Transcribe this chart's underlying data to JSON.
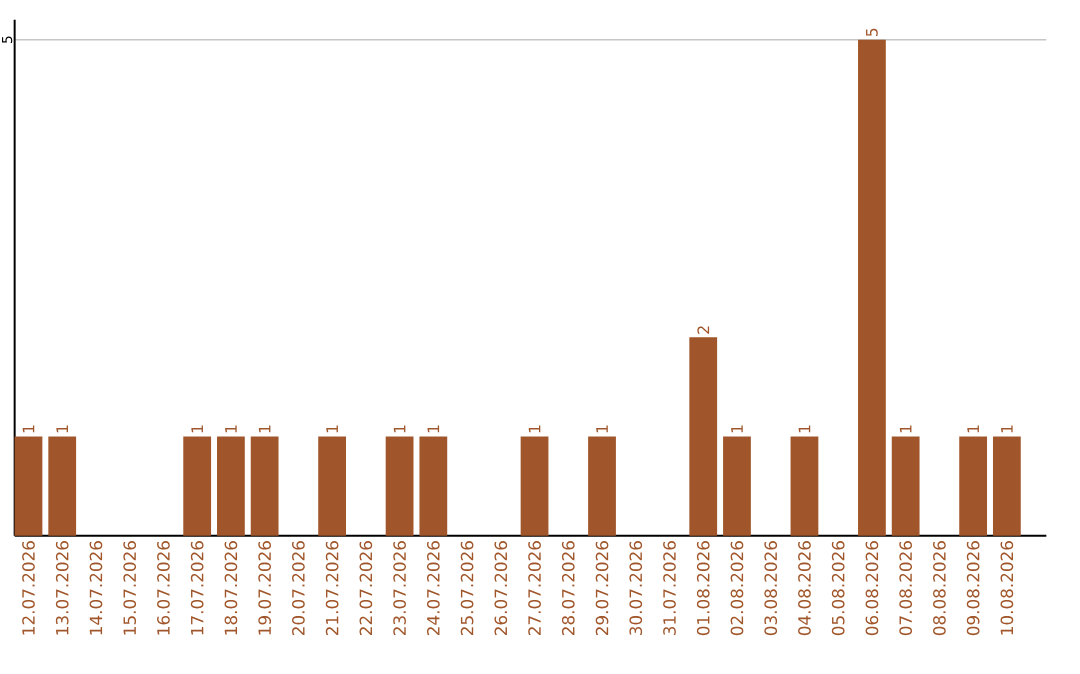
{
  "chart_data": {
    "type": "bar",
    "categories": [
      "12.07.2026",
      "13.07.2026",
      "14.07.2026",
      "15.07.2026",
      "16.07.2026",
      "17.07.2026",
      "18.07.2026",
      "19.07.2026",
      "20.07.2026",
      "21.07.2026",
      "22.07.2026",
      "23.07.2026",
      "24.07.2026",
      "25.07.2026",
      "26.07.2026",
      "27.07.2026",
      "28.07.2026",
      "29.07.2026",
      "30.07.2026",
      "31.07.2026",
      "01.08.2026",
      "02.08.2026",
      "03.08.2026",
      "04.08.2026",
      "05.08.2026",
      "06.08.2026",
      "07.08.2026",
      "08.08.2026",
      "09.08.2026",
      "10.08.2026"
    ],
    "values": [
      1,
      1,
      0,
      0,
      0,
      1,
      1,
      1,
      0,
      1,
      0,
      1,
      1,
      0,
      0,
      1,
      0,
      1,
      0,
      0,
      2,
      1,
      0,
      1,
      0,
      5,
      1,
      0,
      1,
      1
    ],
    "value_labels": [
      "1",
      "1",
      null,
      null,
      null,
      "1",
      "1",
      "1",
      null,
      "1",
      null,
      "1",
      "1",
      null,
      null,
      "1",
      null,
      "1",
      null,
      null,
      "2",
      "1",
      null,
      "1",
      null,
      "5",
      "1",
      null,
      "1",
      "1"
    ],
    "color": "#a0562a",
    "ylim": [
      0,
      5.2
    ],
    "yticks": [
      5
    ],
    "grid": "y"
  }
}
